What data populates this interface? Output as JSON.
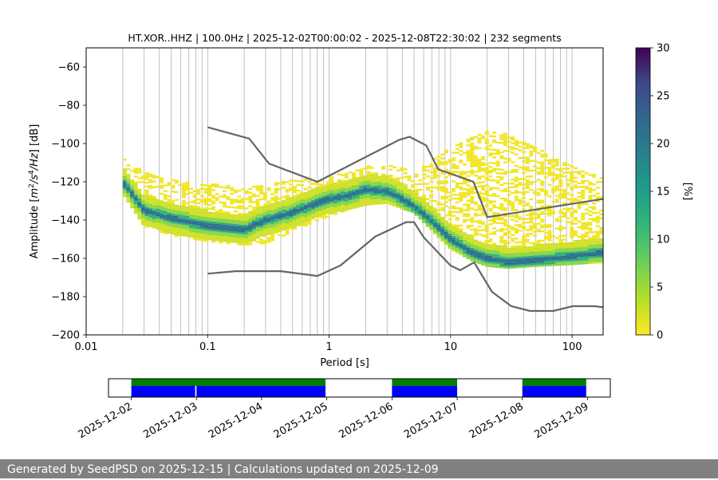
{
  "chart_data": [
    {
      "type": "heatmap",
      "title": "HT.XOR..HHZ | 100.0Hz | 2025-12-02T00:00:02 - 2025-12-08T22:30:02 | 232 segments",
      "xlabel": "Period [s]",
      "ylabel": "Amplitude [m²/s⁴/Hz] [dB]",
      "x_scale": "log",
      "xlim": [
        0.01,
        180
      ],
      "ylim": [
        -200,
        -50
      ],
      "x_ticks": [
        0.01,
        0.1,
        1,
        10,
        100
      ],
      "x_tick_labels": [
        "0.01",
        "0.1",
        "1",
        "10",
        "100"
      ],
      "y_ticks": [
        -200,
        -180,
        -160,
        -140,
        -120,
        -100,
        -80,
        -60
      ],
      "y_tick_labels": [
        "−200",
        "−180",
        "−160",
        "−140",
        "−120",
        "−100",
        "−80",
        "−60"
      ],
      "grid": "vertical",
      "colormap": "viridis_r",
      "colorbar": {
        "label": "[%]",
        "range": [
          0,
          30
        ],
        "ticks": [
          0,
          5,
          10,
          15,
          20,
          25,
          30
        ]
      },
      "mode_curve": {
        "x": [
          0.02,
          0.03,
          0.05,
          0.1,
          0.2,
          0.3,
          0.5,
          0.8,
          1.0,
          1.5,
          2.0,
          3.0,
          4.0,
          5.0,
          6.0,
          8.0,
          10.0,
          15.0,
          20.0,
          30.0,
          50.0,
          100.0,
          180.0
        ],
        "y": [
          -120,
          -135,
          -139,
          -143,
          -145,
          -140,
          -136,
          -131,
          -129,
          -127,
          -124,
          -125,
          -129,
          -133,
          -137,
          -144,
          -150,
          -157,
          -160,
          -162,
          -161,
          -159,
          -157
        ]
      },
      "spread": {
        "x": [
          0.02,
          0.03,
          0.05,
          0.1,
          0.2,
          0.3,
          0.5,
          0.8,
          1.0,
          1.5,
          2.0,
          3.0,
          4.0,
          5.0,
          6.0,
          8.0,
          10.0,
          15.0,
          20.0,
          30.0,
          50.0,
          100.0,
          180.0
        ],
        "upper": [
          -106,
          -115,
          -119,
          -121,
          -123,
          -121,
          -119,
          -118,
          -117,
          -115,
          -112,
          -111,
          -112,
          -116,
          -112,
          -106,
          -102,
          -96,
          -92,
          -95,
          -102,
          -112,
          -118
        ],
        "lower": [
          -126,
          -143,
          -148,
          -151,
          -153,
          -152,
          -146,
          -140,
          -138,
          -134,
          -132,
          -131,
          -134,
          -136,
          -141,
          -149,
          -155,
          -161,
          -164,
          -165,
          -164,
          -163,
          -162
        ]
      },
      "series": [
        {
          "name": "high noise model",
          "x": [
            0.1,
            0.22,
            0.32,
            0.8,
            3.8,
            4.6,
            6.3,
            7.9,
            15.4,
            20.0,
            354.8
          ],
          "y": [
            -91.5,
            -97.4,
            -110.5,
            -120.0,
            -98.0,
            -96.5,
            -101.0,
            -113.5,
            -120.0,
            -138.5,
            -126.0
          ]
        },
        {
          "name": "low noise model",
          "x": [
            0.1,
            0.17,
            0.4,
            0.8,
            1.24,
            2.4,
            4.3,
            5.0,
            6.0,
            10.0,
            12.0,
            15.6,
            21.9,
            31.6,
            45.0,
            70.0,
            101.0,
            154.0,
            180.0
          ],
          "y": [
            -168.0,
            -166.7,
            -166.7,
            -169.2,
            -163.7,
            -148.6,
            -141.1,
            -141.1,
            -149.0,
            -163.8,
            -166.2,
            -162.1,
            -177.5,
            -185.0,
            -187.5,
            -187.5,
            -185.0,
            -185.0,
            -185.6
          ]
        }
      ]
    },
    {
      "type": "timeline",
      "x_tick_labels": [
        "2025-12-02",
        "2025-12-03",
        "2025-12-04",
        "2025-12-05",
        "2025-12-06",
        "2025-12-07",
        "2025-12-08",
        "2025-12-09"
      ],
      "xlim_days": [
        -0.35,
        7.35
      ],
      "colors": {
        "data": "#0000ff",
        "used": "#008000"
      },
      "data_coverage": [
        [
          0.0,
          0.98
        ],
        [
          1.0,
          2.98
        ],
        [
          4.0,
          5.0
        ],
        [
          6.0,
          6.98
        ]
      ],
      "used_coverage": [
        [
          0.0,
          2.98
        ],
        [
          4.0,
          5.0
        ],
        [
          6.0,
          6.98
        ]
      ]
    }
  ],
  "footer": {
    "text": "Generated by SeedPSD on 2025-12-15 | Calculations updated on 2025-12-09"
  }
}
